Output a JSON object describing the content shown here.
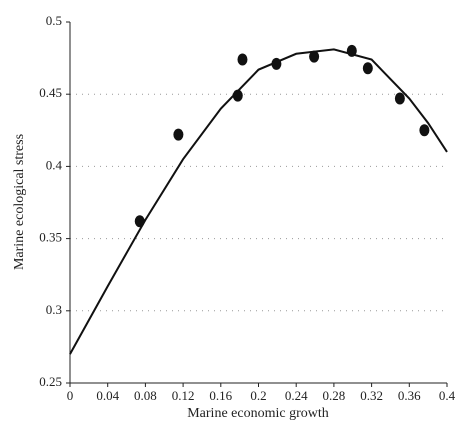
{
  "chart_data": {
    "type": "scatter",
    "x_label": "Marine economic growth",
    "y_label": "Marine ecological stress",
    "xlim": [
      0,
      0.4
    ],
    "ylim": [
      0.25,
      0.5
    ],
    "xticks": [
      0,
      0.04,
      0.08,
      0.12,
      0.16,
      0.2,
      0.24,
      0.28,
      0.32,
      0.36,
      0.4
    ],
    "yticks": [
      0.25,
      0.3,
      0.35,
      0.4,
      0.45,
      0.5
    ],
    "grid": true,
    "color": "#111111",
    "points": {
      "x": [
        0.074,
        0.115,
        0.178,
        0.183,
        0.219,
        0.259,
        0.299,
        0.316,
        0.35,
        0.376
      ],
      "y": [
        0.362,
        0.422,
        0.449,
        0.474,
        0.471,
        0.476,
        0.48,
        0.468,
        0.447,
        0.425
      ]
    },
    "curve": {
      "x": [
        0,
        0.04,
        0.08,
        0.12,
        0.16,
        0.2,
        0.24,
        0.28,
        0.32,
        0.36,
        0.38,
        0.4
      ],
      "y": [
        0.27,
        0.317,
        0.363,
        0.405,
        0.44,
        0.467,
        0.478,
        0.481,
        0.474,
        0.447,
        0.43,
        0.41
      ]
    }
  }
}
